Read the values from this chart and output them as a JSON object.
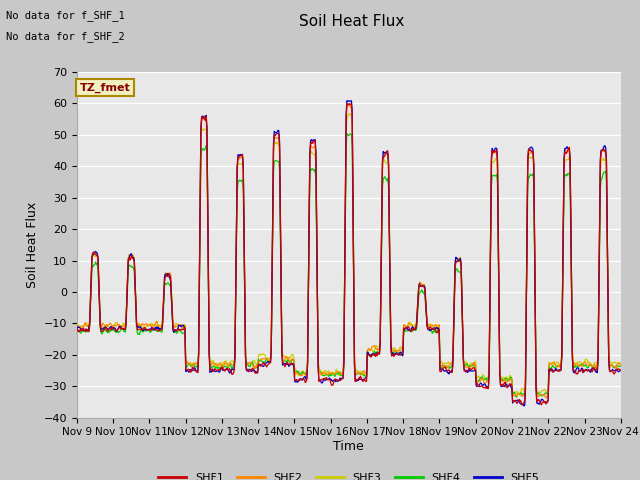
{
  "title": "Soil Heat Flux",
  "ylabel": "Soil Heat Flux",
  "xlabel": "Time",
  "annotation_line1": "No data for f_SHF_1",
  "annotation_line2": "No data for f_SHF_2",
  "box_label": "TZ_fmet",
  "ylim": [
    -40,
    70
  ],
  "yticks": [
    -40,
    -30,
    -20,
    -10,
    0,
    10,
    20,
    30,
    40,
    50,
    60,
    70
  ],
  "colors": {
    "SHF1": "#cc0000",
    "SHF2": "#ff8800",
    "SHF3": "#cccc00",
    "SHF4": "#00cc00",
    "SHF5": "#0000cc"
  },
  "fig_bg": "#c8c8c8",
  "plot_bg": "#e8e8e8",
  "grid_color": "#ffffff",
  "n_days": 15,
  "points_per_day": 48,
  "start_day": 9
}
